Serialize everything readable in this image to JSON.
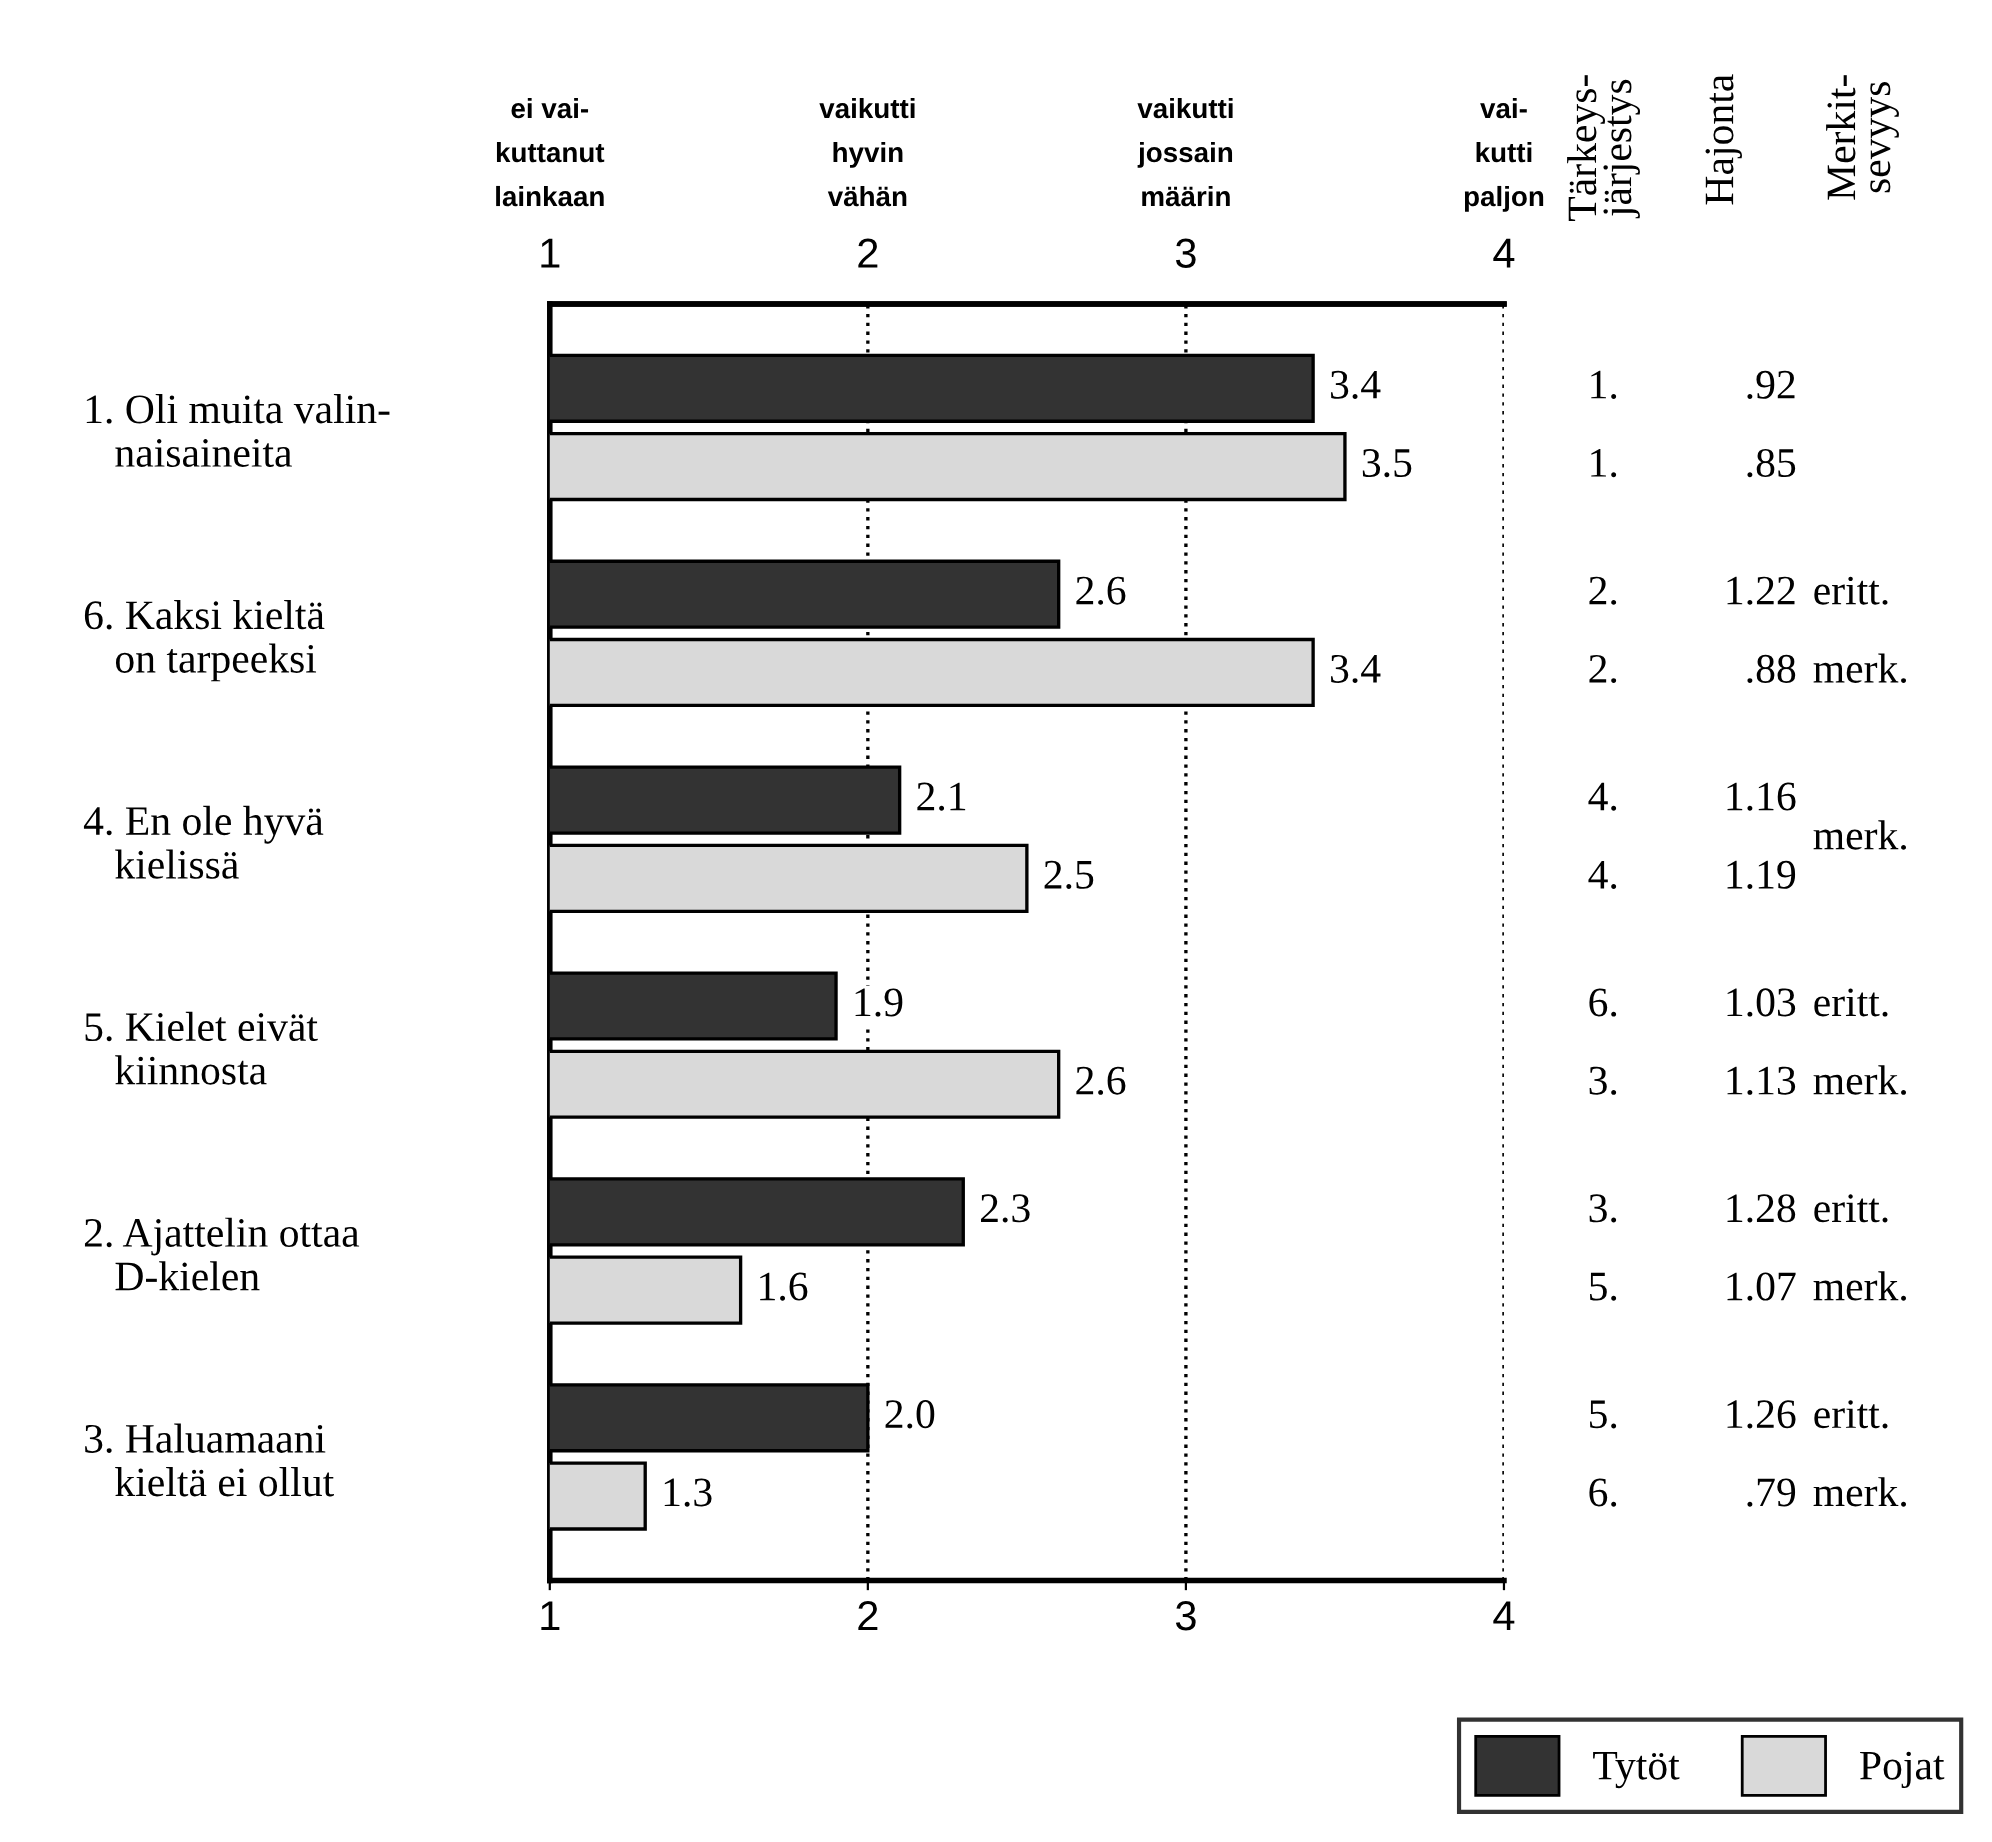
{
  "chart_data": {
    "type": "bar",
    "orientation": "horizontal",
    "categories": [
      "1. Oli muita valin-\n   naisaineita",
      "6. Kaksi kieltä\n   on tarpeeksi",
      "4. En ole hyvä\n   kielissä",
      "5. Kielet eivät\n   kiinnosta",
      "2. Ajattelin ottaa\n   D-kielen",
      "3. Haluamaani\n   kieltä ei ollut"
    ],
    "series": [
      {
        "name": "Tytöt",
        "color": "#333333",
        "values": [
          3.4,
          2.6,
          2.1,
          1.9,
          2.3,
          2.0
        ],
        "value_labels": [
          "3.4",
          "2.6",
          "2.1",
          "1.9",
          "2.3",
          "2.0"
        ]
      },
      {
        "name": "Pojat",
        "color": "#d9d9d9",
        "values": [
          3.5,
          3.4,
          2.5,
          2.6,
          1.6,
          1.3
        ],
        "value_labels": [
          "3.5",
          "3.4",
          "2.5",
          "2.6",
          "1.6",
          "1.3"
        ]
      }
    ],
    "xlim": [
      1,
      4
    ],
    "xticks": [
      1,
      2,
      3,
      4
    ],
    "x2lim": [
      1,
      4
    ],
    "x2ticks": [
      1,
      2,
      3,
      4
    ],
    "grid": "x",
    "line_style": "dotted",
    "legend": "bottom right",
    "annotations": [
      "Tärkeys-\njärjestys",
      "Hajonta",
      "Merkit-\nsevyys",
      "1.",
      "1.",
      "2.",
      "2.",
      "4.",
      "4.",
      "6.",
      "3.",
      "3.",
      "5.",
      "5.",
      "6.",
      ".92",
      ".85",
      "1.22",
      ".88",
      "1.16",
      "1.19",
      "1.03",
      "1.13",
      "1.28",
      "1.07",
      "1.26",
      ".79",
      "eritt.",
      "merk.",
      "merk.",
      "eritt.",
      "merk.",
      "eritt.",
      "merk.",
      "eritt.",
      "merk.",
      "ei vai-\nkuttanut\nlainkaan",
      "vaikutti\nhyvin\nvähän",
      "vaikutti\njossain\nmäärin",
      "vai-\nkutti\npaljon"
    ]
  }
}
